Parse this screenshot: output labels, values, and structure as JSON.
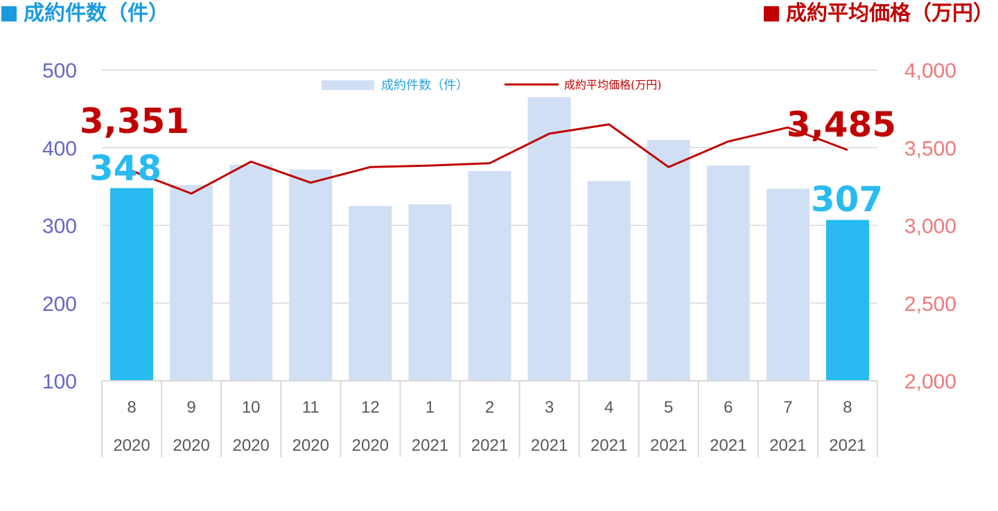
{
  "header": {
    "left_title": "成約件数（件）",
    "right_title": "成約平均価格（万円）"
  },
  "colors": {
    "bar": "#d0dff4",
    "bar_highlight": "#29bbf0",
    "line": "#c00000",
    "left_axis": "#6666c6",
    "right_axis": "#f07878",
    "left_title": "#1a9be0",
    "right_title": "#c00000",
    "grid": "#d9d9d9",
    "category_text": "#595959",
    "legend_bar_text": "#29a3dc"
  },
  "chart_data": {
    "type": "bar",
    "categories": [
      {
        "month": "8",
        "year": "2020"
      },
      {
        "month": "9",
        "year": "2020"
      },
      {
        "month": "10",
        "year": "2020"
      },
      {
        "month": "11",
        "year": "2020"
      },
      {
        "month": "12",
        "year": "2020"
      },
      {
        "month": "1",
        "year": "2021"
      },
      {
        "month": "2",
        "year": "2021"
      },
      {
        "month": "3",
        "year": "2021"
      },
      {
        "month": "4",
        "year": "2021"
      },
      {
        "month": "5",
        "year": "2021"
      },
      {
        "month": "6",
        "year": "2021"
      },
      {
        "month": "7",
        "year": "2021"
      },
      {
        "month": "8",
        "year": "2021"
      }
    ],
    "series": [
      {
        "name": "成約件数(件)",
        "type": "bar",
        "axis": "left",
        "values": [
          348,
          352,
          378,
          372,
          325,
          327,
          370,
          465,
          357,
          410,
          377,
          347,
          307
        ],
        "highlight": [
          0,
          12
        ]
      },
      {
        "name": "成約平均価格(万円)",
        "type": "line",
        "axis": "right",
        "values": [
          3351,
          3205,
          3410,
          3275,
          3375,
          3385,
          3400,
          3590,
          3650,
          3375,
          3540,
          3630,
          3485
        ]
      }
    ],
    "y_left": {
      "min": 100,
      "max": 500,
      "ticks": [
        "500",
        "400",
        "300",
        "200",
        "100"
      ]
    },
    "y_right": {
      "min": 2000,
      "max": 4000,
      "ticks": [
        "4,000",
        "3,500",
        "3,000",
        "2,500",
        "2,000"
      ]
    },
    "annotations": {
      "first_price": "3,351",
      "first_count": "348",
      "last_price": "3,485",
      "last_count": "307"
    },
    "legend": {
      "placement": "top-center",
      "bar_label": "成約件数（件）",
      "line_label": "成約平均価格(万円)"
    },
    "grid": true
  }
}
